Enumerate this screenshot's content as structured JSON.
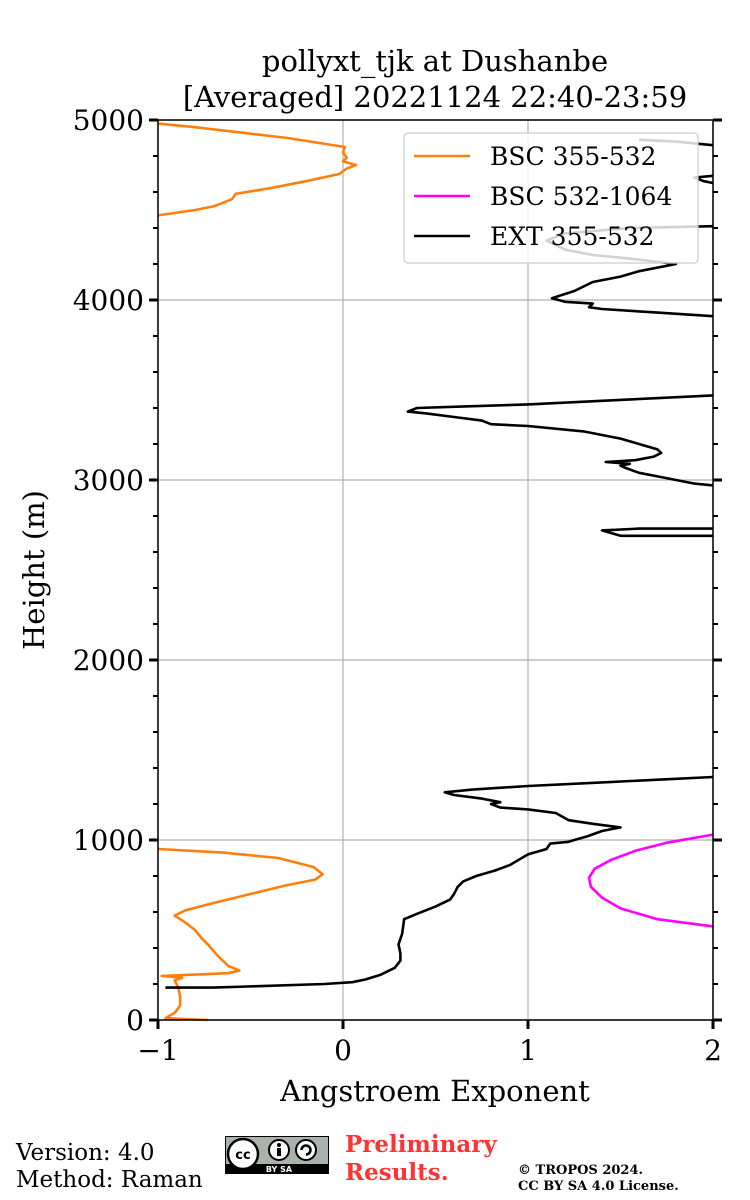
{
  "chart_data": {
    "type": "line",
    "title": "pollyxt_tjk at Dushanbe",
    "subtitle": "[Averaged] 20221124 22:40-23:59",
    "xlabel": "Angstroem Exponent",
    "ylabel": "Height (m)",
    "xlim": [
      -1,
      2
    ],
    "ylim": [
      0,
      5000
    ],
    "x_ticks": [
      -1,
      0,
      1,
      2
    ],
    "x_tick_labels": [
      "−1",
      "0",
      "1",
      "2"
    ],
    "y_ticks": [
      0,
      1000,
      2000,
      3000,
      4000,
      5000
    ],
    "y_tick_labels": [
      "0",
      "1000",
      "2000",
      "3000",
      "4000",
      "5000"
    ],
    "grid": true,
    "legend_position": "top-right",
    "series": [
      {
        "name": "BSC 355-532",
        "color": "#ff7f0e",
        "points": [
          [
            -0.73,
            0
          ],
          [
            -0.96,
            10
          ],
          [
            -0.91,
            40
          ],
          [
            -0.88,
            80
          ],
          [
            -0.88,
            130
          ],
          [
            -0.89,
            180
          ],
          [
            -0.91,
            220
          ],
          [
            -0.87,
            235
          ],
          [
            -0.98,
            245
          ],
          [
            -0.62,
            260
          ],
          [
            -0.56,
            275
          ],
          [
            -0.62,
            300
          ],
          [
            -0.68,
            360
          ],
          [
            -0.73,
            420
          ],
          [
            -0.76,
            450
          ],
          [
            -0.8,
            500
          ],
          [
            -0.85,
            540
          ],
          [
            -0.91,
            580
          ],
          [
            -0.85,
            610
          ],
          [
            -0.7,
            650
          ],
          [
            -0.5,
            700
          ],
          [
            -0.3,
            750
          ],
          [
            -0.15,
            780
          ],
          [
            -0.11,
            810
          ],
          [
            -0.16,
            850
          ],
          [
            -0.35,
            900
          ],
          [
            -0.65,
            930
          ],
          [
            -1.0,
            950
          ]
        ]
      },
      {
        "name": "BSC 355-532 (upper)",
        "color": "#ff7f0e",
        "points": [
          [
            -1.0,
            4470
          ],
          [
            -0.8,
            4500
          ],
          [
            -0.7,
            4520
          ],
          [
            -0.6,
            4560
          ],
          [
            -0.58,
            4590
          ],
          [
            -0.4,
            4620
          ],
          [
            -0.2,
            4660
          ],
          [
            -0.02,
            4700
          ],
          [
            0.02,
            4730
          ],
          [
            0.07,
            4750
          ],
          [
            0.0,
            4770
          ],
          [
            0.02,
            4790
          ],
          [
            0.0,
            4820
          ],
          [
            0.01,
            4850
          ],
          [
            -0.3,
            4900
          ],
          [
            -0.8,
            4960
          ],
          [
            -1.0,
            4980
          ]
        ]
      },
      {
        "name": "BSC 532-1064",
        "color": "#ff00ff",
        "points": [
          [
            2.0,
            520
          ],
          [
            1.7,
            560
          ],
          [
            1.5,
            620
          ],
          [
            1.4,
            680
          ],
          [
            1.34,
            740
          ],
          [
            1.33,
            790
          ],
          [
            1.36,
            840
          ],
          [
            1.45,
            890
          ],
          [
            1.58,
            940
          ],
          [
            1.75,
            985
          ],
          [
            2.0,
            1030
          ]
        ]
      },
      {
        "name": "EXT 355-532",
        "color": "#000000",
        "points": [
          [
            -0.96,
            180
          ],
          [
            -0.7,
            180
          ],
          [
            -0.4,
            190
          ],
          [
            -0.1,
            200
          ],
          [
            0.05,
            210
          ],
          [
            0.12,
            225
          ],
          [
            0.2,
            250
          ],
          [
            0.28,
            290
          ],
          [
            0.31,
            330
          ],
          [
            0.31,
            370
          ],
          [
            0.3,
            420
          ],
          [
            0.32,
            480
          ],
          [
            0.33,
            560
          ],
          [
            0.4,
            590
          ],
          [
            0.5,
            630
          ],
          [
            0.58,
            670
          ],
          [
            0.6,
            700
          ],
          [
            0.62,
            740
          ],
          [
            0.65,
            770
          ],
          [
            0.72,
            800
          ],
          [
            0.82,
            830
          ],
          [
            0.9,
            860
          ],
          [
            1.0,
            920
          ],
          [
            1.1,
            950
          ],
          [
            1.12,
            980
          ],
          [
            1.22,
            990
          ],
          [
            1.25,
            1000
          ],
          [
            1.32,
            1020
          ],
          [
            1.4,
            1050
          ],
          [
            1.5,
            1070
          ],
          [
            1.35,
            1090
          ],
          [
            1.22,
            1110
          ],
          [
            1.15,
            1150
          ],
          [
            1.0,
            1170
          ],
          [
            0.85,
            1180
          ],
          [
            0.8,
            1200
          ],
          [
            0.85,
            1210
          ],
          [
            0.75,
            1230
          ],
          [
            0.6,
            1250
          ],
          [
            0.55,
            1265
          ],
          [
            0.7,
            1280
          ],
          [
            1.0,
            1300
          ],
          [
            1.4,
            1320
          ],
          [
            1.8,
            1340
          ],
          [
            2.0,
            1350
          ]
        ]
      },
      {
        "name": "EXT 355-532 (mid)",
        "color": "#000000",
        "points": [
          [
            2.0,
            2690
          ],
          [
            1.5,
            2690
          ],
          [
            1.4,
            2720
          ],
          [
            1.6,
            2730
          ],
          [
            2.0,
            2730
          ]
        ]
      },
      {
        "name": "EXT 355-532 (cloud base)",
        "color": "#000000",
        "points": [
          [
            2.0,
            2970
          ],
          [
            1.9,
            2980
          ],
          [
            1.8,
            3000
          ],
          [
            1.7,
            3020
          ],
          [
            1.6,
            3040
          ],
          [
            1.52,
            3070
          ],
          [
            1.5,
            3080
          ],
          [
            1.55,
            3090
          ],
          [
            1.42,
            3100
          ],
          [
            1.58,
            3110
          ],
          [
            1.68,
            3130
          ],
          [
            1.72,
            3150
          ],
          [
            1.7,
            3170
          ],
          [
            1.6,
            3200
          ],
          [
            1.5,
            3230
          ],
          [
            1.4,
            3250
          ],
          [
            1.3,
            3270
          ],
          [
            1.0,
            3300
          ],
          [
            0.8,
            3310
          ],
          [
            0.75,
            3330
          ],
          [
            0.6,
            3350
          ],
          [
            0.45,
            3370
          ],
          [
            0.35,
            3380
          ],
          [
            0.4,
            3400
          ],
          [
            0.7,
            3410
          ],
          [
            1.0,
            3420
          ],
          [
            1.4,
            3440
          ],
          [
            2.0,
            3470
          ]
        ]
      },
      {
        "name": "EXT 355-532 (upper)",
        "color": "#000000",
        "points": [
          [
            2.0,
            3910
          ],
          [
            1.7,
            3930
          ],
          [
            1.4,
            3950
          ],
          [
            1.33,
            3960
          ],
          [
            1.35,
            3980
          ],
          [
            1.2,
            3990
          ],
          [
            1.13,
            4010
          ],
          [
            1.25,
            4050
          ],
          [
            1.35,
            4100
          ],
          [
            1.5,
            4130
          ],
          [
            1.6,
            4160
          ],
          [
            1.8,
            4200
          ],
          [
            1.55,
            4230
          ],
          [
            1.35,
            4250
          ],
          [
            1.2,
            4280
          ],
          [
            1.1,
            4330
          ],
          [
            1.2,
            4370
          ],
          [
            1.55,
            4400
          ],
          [
            2.0,
            4410
          ]
        ]
      },
      {
        "name": "EXT 355-532 (top)",
        "color": "#000000",
        "points": [
          [
            2.0,
            4650
          ],
          [
            1.95,
            4660
          ],
          [
            1.9,
            4680
          ],
          [
            2.0,
            4690
          ]
        ]
      },
      {
        "name": "EXT 355-532 (top2)",
        "color": "#000000",
        "points": [
          [
            2.0,
            4860
          ],
          [
            1.9,
            4870
          ],
          [
            1.8,
            4880
          ],
          [
            1.6,
            4890
          ]
        ]
      }
    ],
    "legend": [
      {
        "label": "BSC 355-532",
        "color": "#ff7f0e"
      },
      {
        "label": "BSC 532-1064",
        "color": "#ff00ff"
      },
      {
        "label": "EXT 355-532",
        "color": "#000000"
      }
    ]
  },
  "footer": {
    "version": "Version: 4.0",
    "method": "Method: Raman",
    "preliminary_line1": "Preliminary",
    "preliminary_line2": "Results.",
    "preliminary_color": "#ff3333",
    "copyright_line1": "© TROPOS 2024.",
    "copyright_line2": "CC BY SA 4.0 License.",
    "license_badge": "cc-by-sa-icon",
    "license_badge_text": "BY SA"
  }
}
